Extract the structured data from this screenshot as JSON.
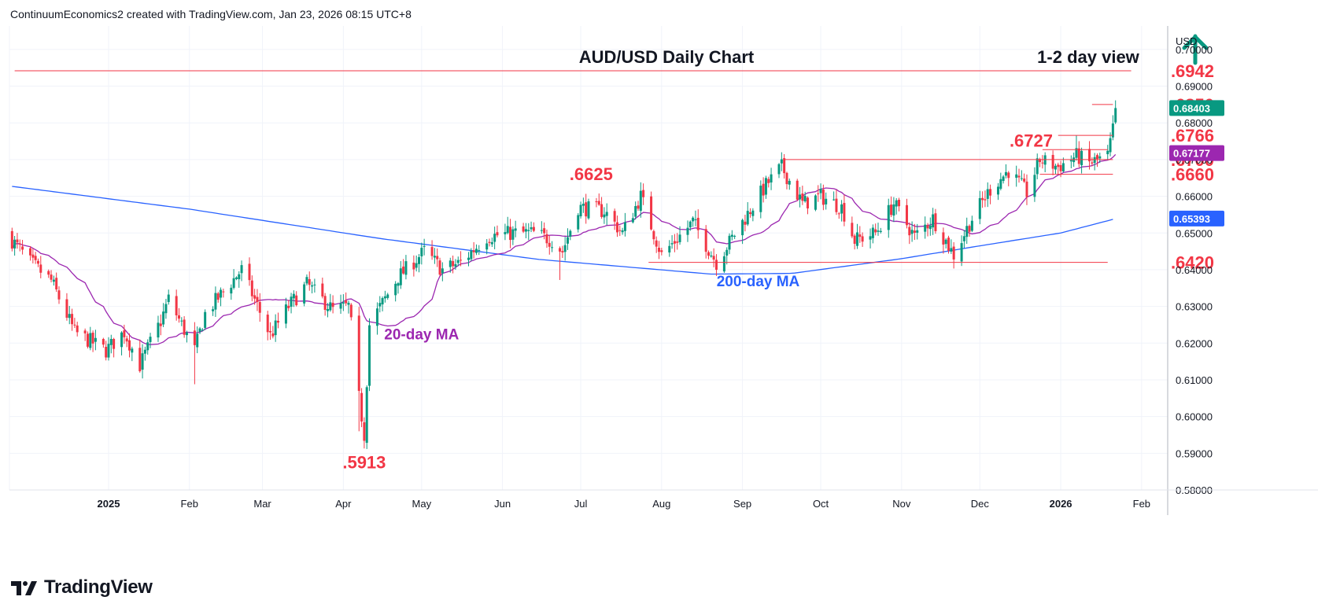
{
  "header": {
    "attribution": "ContinuumEconomics2 created with TradingView.com, Jan 23, 2026 08:15 UTC+8"
  },
  "footer": {
    "brand": "TradingView"
  },
  "colors": {
    "bull": "#089981",
    "bear": "#f23645",
    "ma20": "#9c27b0",
    "ma200": "#2962ff",
    "level_text": "#f23645",
    "arrow": "#089981"
  },
  "chart_data": {
    "type": "candlestick",
    "title": "AUD/USD Daily Chart",
    "subtitle": "1-2 day view",
    "currency": "USD",
    "y_axis": {
      "ticks": [
        "0.70000",
        "0.69000",
        "0.68000",
        "0.67000",
        "0.66000",
        "0.65000",
        "0.64000",
        "0.63000",
        "0.62000",
        "0.61000",
        "0.60000",
        "0.59000",
        "0.58000"
      ],
      "range": [
        0.58,
        0.7064
      ]
    },
    "x_axis": {
      "labels": [
        "2025",
        "Feb",
        "Mar",
        "Apr",
        "May",
        "Jun",
        "Jul",
        "Aug",
        "Sep",
        "Oct",
        "Nov",
        "Dec",
        "2026",
        "Feb"
      ],
      "bold_labels": [
        "2025",
        "2026"
      ]
    },
    "current_price": {
      "label": "0.68403",
      "value": 0.68403,
      "color": "#089981"
    },
    "ma20_last": {
      "label": "0.67177",
      "value": 0.67177,
      "color": "#9c27b0"
    },
    "ma200_last": {
      "label": "0.65393",
      "value": 0.65393,
      "color": "#2962ff"
    },
    "levels": [
      {
        "label": ".6942",
        "value": 0.6942,
        "start": "2024-11-26",
        "end": "2026-01-28"
      },
      {
        "label": ".6850",
        "value": 0.685,
        "start": "2026-01-13",
        "end": "2026-01-21"
      },
      {
        "label": ".6766",
        "value": 0.6766,
        "start": "2025-12-31",
        "end": "2026-01-21"
      },
      {
        "label": ".6727",
        "value": 0.6727,
        "start": "2025-12-25",
        "end": "2026-01-19",
        "label_left": true
      },
      {
        "label": ".6700",
        "value": 0.67,
        "start": "2025-09-17",
        "end": "2026-01-21"
      },
      {
        "label": ".6660",
        "value": 0.666,
        "start": "2025-12-24",
        "end": "2026-01-21"
      },
      {
        "label": ".6420",
        "value": 0.642,
        "start": "2025-07-27",
        "end": "2026-01-19"
      }
    ],
    "annotations": [
      {
        "text": ".6625",
        "date": "2025-07-05",
        "value": 0.6625,
        "color": "#f23645"
      },
      {
        "text": ".5913",
        "date": "2025-04-09",
        "value": 0.5913,
        "color": "#f23645"
      },
      {
        "text": "20-day MA",
        "date": "2025-05-01",
        "value": 0.6225,
        "color": "#9c27b0"
      },
      {
        "text": "200-day MA",
        "date": "2025-09-07",
        "value": 0.637,
        "color": "#2962ff"
      }
    ],
    "ohlc_keyframes": [
      [
        "2024-11-25",
        0.648
      ],
      [
        "2024-12-02",
        0.642
      ],
      [
        "2024-12-10",
        0.637
      ],
      [
        "2024-12-19",
        0.623
      ],
      [
        "2024-12-31",
        0.618
      ],
      [
        "2025-01-07",
        0.623
      ],
      [
        "2025-01-13",
        0.614
      ],
      [
        "2025-01-21",
        0.626
      ],
      [
        "2025-01-24",
        0.632
      ],
      [
        "2025-02-03",
        0.618
      ],
      [
        "2025-02-07",
        0.628
      ],
      [
        "2025-02-14",
        0.634
      ],
      [
        "2025-02-21",
        0.64
      ],
      [
        "2025-03-04",
        0.622
      ],
      [
        "2025-03-11",
        0.63
      ],
      [
        "2025-03-18",
        0.636
      ],
      [
        "2025-03-28",
        0.629
      ],
      [
        "2025-04-03",
        0.63
      ],
      [
        "2025-04-04",
        0.625
      ],
      [
        "2025-04-07",
        0.605
      ],
      [
        "2025-04-09",
        0.595
      ],
      [
        "2025-04-11",
        0.625
      ],
      [
        "2025-04-22",
        0.638
      ],
      [
        "2025-05-02",
        0.645
      ],
      [
        "2025-05-09",
        0.64
      ],
      [
        "2025-05-16",
        0.642
      ],
      [
        "2025-05-26",
        0.649
      ],
      [
        "2025-06-05",
        0.65
      ],
      [
        "2025-06-13",
        0.65
      ],
      [
        "2025-06-20",
        0.648
      ],
      [
        "2025-06-24",
        0.645
      ],
      [
        "2025-06-30",
        0.657
      ],
      [
        "2025-07-10",
        0.656
      ],
      [
        "2025-07-17",
        0.65
      ],
      [
        "2025-07-24",
        0.66
      ],
      [
        "2025-08-01",
        0.644
      ],
      [
        "2025-08-13",
        0.653
      ],
      [
        "2025-08-22",
        0.642
      ],
      [
        "2025-09-01",
        0.653
      ],
      [
        "2025-09-10",
        0.663
      ],
      [
        "2025-09-16",
        0.668
      ],
      [
        "2025-09-24",
        0.658
      ],
      [
        "2025-10-01",
        0.66
      ],
      [
        "2025-10-09",
        0.657
      ],
      [
        "2025-10-14",
        0.648
      ],
      [
        "2025-10-22",
        0.65
      ],
      [
        "2025-10-29",
        0.658
      ],
      [
        "2025-11-06",
        0.649
      ],
      [
        "2025-11-13",
        0.654
      ],
      [
        "2025-11-21",
        0.644
      ],
      [
        "2025-11-28",
        0.654
      ],
      [
        "2025-12-05",
        0.662
      ],
      [
        "2025-12-12",
        0.667
      ],
      [
        "2025-12-19",
        0.661
      ],
      [
        "2025-12-24",
        0.67
      ],
      [
        "2025-12-31",
        0.668
      ],
      [
        "2026-01-07",
        0.671
      ],
      [
        "2026-01-12",
        0.669
      ],
      [
        "2026-01-19",
        0.671
      ],
      [
        "2026-01-21",
        0.678
      ],
      [
        "2026-01-22",
        0.684
      ]
    ],
    "ma200_keyframes": [
      [
        "2024-11-25",
        0.6627
      ],
      [
        "2025-02-01",
        0.6565
      ],
      [
        "2025-04-15",
        0.6485
      ],
      [
        "2025-06-15",
        0.6428
      ],
      [
        "2025-08-20",
        0.6388
      ],
      [
        "2025-09-20",
        0.639
      ],
      [
        "2025-11-01",
        0.643
      ],
      [
        "2025-12-01",
        0.6465
      ],
      [
        "2026-01-01",
        0.65
      ],
      [
        "2026-01-22",
        0.6539
      ]
    ]
  }
}
